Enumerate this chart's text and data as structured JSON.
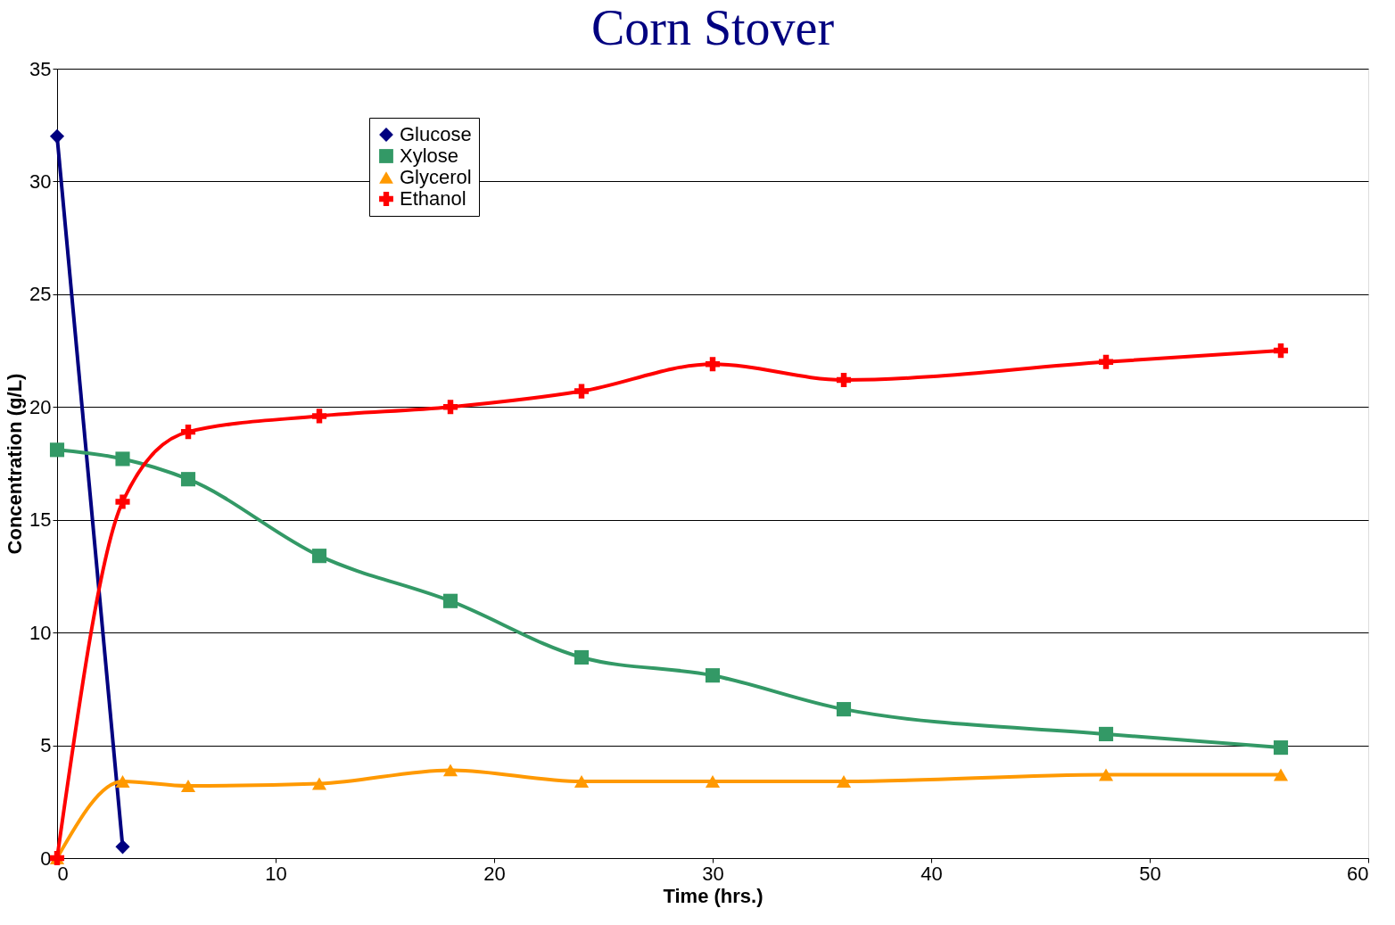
{
  "chart_data": {
    "type": "line",
    "title": "Corn Stover",
    "xlabel": "Time (hrs.)",
    "ylabel": "Concentration (g/L)",
    "x": [
      0,
      3,
      6,
      12,
      18,
      24,
      30,
      36,
      48,
      56
    ],
    "xlim": [
      0,
      60
    ],
    "xticks": [
      0,
      10,
      20,
      30,
      40,
      50,
      60
    ],
    "ylim": [
      0,
      35
    ],
    "yticks": [
      0,
      5,
      10,
      15,
      20,
      25,
      30,
      35
    ],
    "grid": "y",
    "legend": "top left",
    "line_style": "solid",
    "series": [
      {
        "name": "Glucose",
        "color": "#000080",
        "marker": "diamond",
        "x": [
          0,
          3
        ],
        "values": [
          32.0,
          0.5
        ]
      },
      {
        "name": "Xylose",
        "color": "#339966",
        "marker": "square",
        "values": [
          18.1,
          17.7,
          16.8,
          13.4,
          11.4,
          8.9,
          8.1,
          6.6,
          5.5,
          4.9
        ]
      },
      {
        "name": "Glycerol",
        "color": "#ff9900",
        "marker": "triangle",
        "values": [
          0,
          3.4,
          3.2,
          3.3,
          3.9,
          3.4,
          3.4,
          3.4,
          3.7,
          3.7
        ]
      },
      {
        "name": "Ethanol",
        "color": "#ff0000",
        "marker": "cross",
        "values": [
          0,
          15.8,
          18.9,
          19.6,
          20.0,
          20.7,
          21.9,
          21.2,
          22.0,
          22.5
        ]
      }
    ]
  }
}
